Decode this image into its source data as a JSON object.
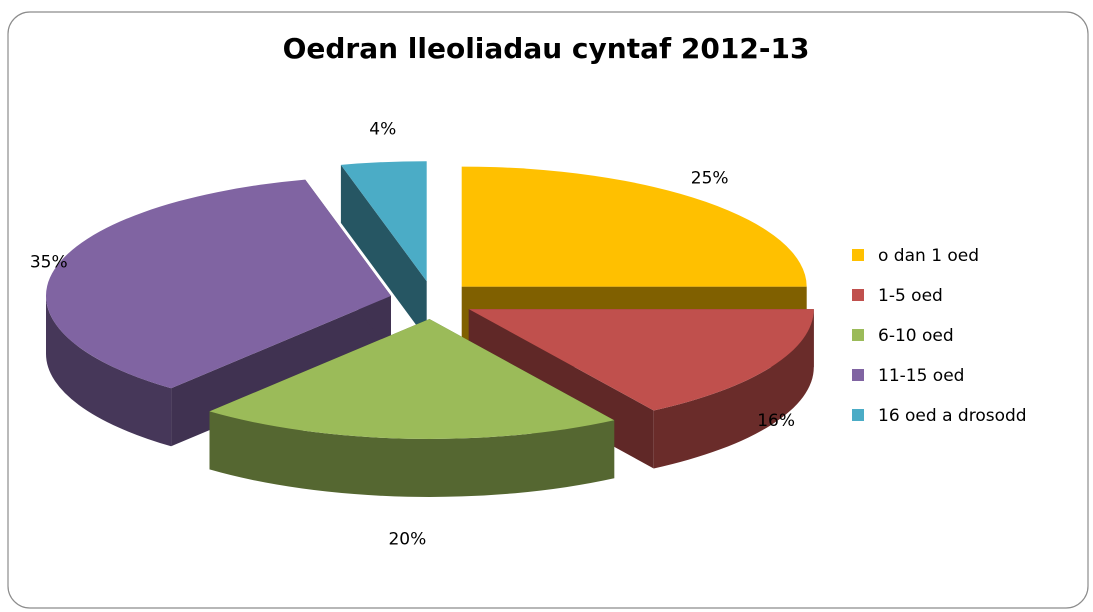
{
  "chart_data": {
    "type": "pie",
    "title": "Oedran lleoliadau cyntaf 2012-13",
    "categories": [
      "o dan 1 oed",
      "1-5 oed",
      "6-10 oed",
      "11-15 oed",
      "16 oed a drosodd"
    ],
    "values": [
      25,
      16,
      20,
      35,
      4
    ],
    "value_labels": [
      "25%",
      "16%",
      "20%",
      "35%",
      "4%"
    ],
    "colors": [
      "#FFC000",
      "#C0504D",
      "#9BBB59",
      "#8064A2",
      "#4BACC6"
    ],
    "legend": "right"
  }
}
